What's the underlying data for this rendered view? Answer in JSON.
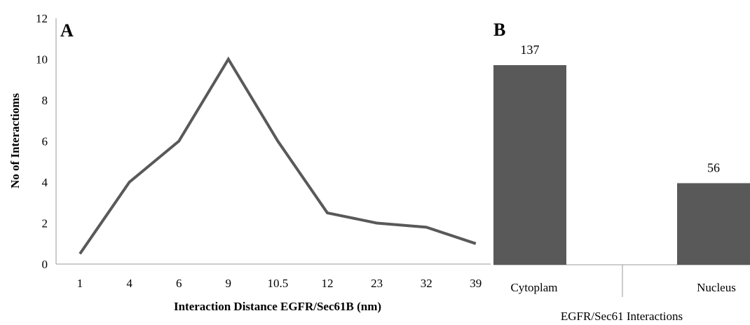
{
  "chart_data": [
    {
      "panel": "A",
      "type": "line",
      "xlabel": "Interaction Distance EGFR/Sec61B (nm)",
      "ylabel": "No of Interactioms",
      "ylim": [
        0,
        12
      ],
      "yticks": [
        "0",
        "2",
        "4",
        "6",
        "8",
        "10",
        "12"
      ],
      "categories": [
        "1",
        "4",
        "6",
        "9",
        "10.5",
        "12",
        "23",
        "32",
        "39"
      ],
      "series": [
        {
          "values": [
            0.5,
            4,
            6,
            10,
            6,
            2.5,
            2,
            1.8,
            1
          ],
          "color": "#595959"
        }
      ],
      "grid": false
    },
    {
      "panel": "B",
      "type": "bar",
      "xlabel": "EGFR/Sec61 Interactions",
      "categories": [
        "Cytoplam",
        "Nucleus"
      ],
      "values": [
        137,
        56
      ],
      "data_labels": [
        "137",
        "56"
      ],
      "color": "#595959",
      "grid": false
    }
  ]
}
